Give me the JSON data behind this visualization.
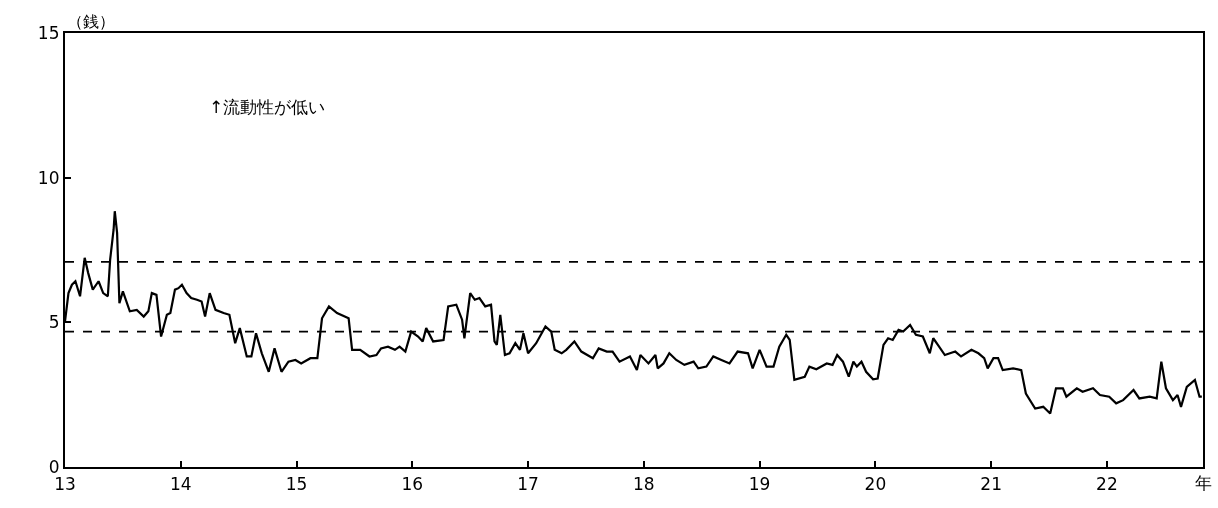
{
  "chart_data": {
    "type": "line",
    "ylabel": "（銭）",
    "xlabel": "年",
    "annotations": [
      "↑流動性が低い"
    ],
    "xlim": [
      13,
      22.83
    ],
    "xticks": [
      13,
      14,
      15,
      16,
      17,
      18,
      19,
      20,
      21,
      22
    ],
    "ylim": [
      0,
      15
    ],
    "yticks": [
      0,
      5,
      10,
      15
    ],
    "marker": "none",
    "line_style": "solid",
    "ref_lines": [
      {
        "axis": "y",
        "value": 7.09,
        "color": "#000000",
        "line_style": "dashed"
      },
      {
        "axis": "y",
        "value": 4.68,
        "color": "#000000",
        "line_style": "dashed"
      }
    ],
    "series": [
      {
        "color": "#000000",
        "x": [
          13.0,
          13.03,
          13.06,
          13.09,
          13.13,
          13.17,
          13.2,
          13.24,
          13.29,
          13.33,
          13.37,
          13.39,
          13.42,
          13.43,
          13.45,
          13.47,
          13.5,
          13.56,
          13.62,
          13.68,
          13.72,
          13.75,
          13.79,
          13.83,
          13.88,
          13.91,
          13.95,
          13.98,
          14.01,
          14.05,
          14.09,
          14.14,
          14.18,
          14.21,
          14.25,
          14.3,
          14.37,
          14.42,
          14.47,
          14.51,
          14.57,
          14.61,
          14.65,
          14.7,
          14.76,
          14.81,
          14.87,
          14.93,
          14.99,
          15.04,
          15.12,
          15.18,
          15.22,
          15.28,
          15.35,
          15.45,
          15.48,
          15.55,
          15.63,
          15.69,
          15.73,
          15.79,
          15.85,
          15.89,
          15.94,
          15.99,
          16.05,
          16.09,
          16.12,
          16.18,
          16.27,
          16.31,
          16.38,
          16.43,
          16.45,
          16.5,
          16.54,
          16.58,
          16.63,
          16.68,
          16.71,
          16.73,
          16.76,
          16.8,
          16.84,
          16.89,
          16.93,
          16.96,
          17.0,
          17.07,
          17.15,
          17.2,
          17.23,
          17.29,
          17.33,
          17.4,
          17.46,
          17.56,
          17.61,
          17.68,
          17.73,
          17.79,
          17.88,
          17.94,
          17.97,
          18.04,
          18.1,
          18.12,
          18.17,
          18.22,
          18.28,
          18.35,
          18.43,
          18.47,
          18.54,
          18.6,
          18.67,
          18.74,
          18.81,
          18.9,
          18.94,
          19.0,
          19.06,
          19.12,
          19.17,
          19.23,
          19.26,
          19.3,
          19.39,
          19.43,
          19.49,
          19.58,
          19.63,
          19.67,
          19.72,
          19.77,
          19.81,
          19.84,
          19.88,
          19.92,
          19.98,
          20.02,
          20.07,
          20.11,
          20.15,
          20.2,
          20.24,
          20.3,
          20.35,
          20.41,
          20.47,
          20.5,
          20.54,
          20.6,
          20.69,
          20.74,
          20.83,
          20.89,
          20.94,
          20.97,
          21.02,
          21.06,
          21.1,
          21.19,
          21.26,
          21.3,
          21.38,
          21.45,
          21.51,
          21.56,
          21.62,
          21.65,
          21.74,
          21.79,
          21.88,
          21.94,
          22.02,
          22.08,
          22.14,
          22.23,
          22.28,
          22.37,
          22.43,
          22.47,
          22.51,
          22.57,
          22.61,
          22.64,
          22.69,
          22.76,
          22.8,
          22.82
        ],
        "values": [
          5.03,
          6.01,
          6.3,
          6.42,
          5.9,
          7.23,
          6.71,
          6.13,
          6.42,
          6.01,
          5.9,
          7.17,
          8.21,
          8.84,
          8.09,
          5.66,
          6.07,
          5.38,
          5.43,
          5.2,
          5.38,
          6.01,
          5.95,
          4.51,
          5.26,
          5.32,
          6.13,
          6.18,
          6.3,
          6.01,
          5.84,
          5.78,
          5.72,
          5.2,
          6.01,
          5.43,
          5.32,
          5.26,
          4.28,
          4.8,
          3.82,
          3.82,
          4.62,
          3.93,
          3.29,
          4.1,
          3.29,
          3.64,
          3.7,
          3.58,
          3.76,
          3.76,
          5.14,
          5.55,
          5.32,
          5.14,
          4.05,
          4.05,
          3.82,
          3.87,
          4.1,
          4.16,
          4.05,
          4.16,
          3.99,
          4.68,
          4.51,
          4.34,
          4.8,
          4.34,
          4.39,
          5.55,
          5.61,
          5.09,
          4.45,
          6.01,
          5.78,
          5.84,
          5.55,
          5.61,
          4.34,
          4.22,
          5.26,
          3.87,
          3.93,
          4.28,
          4.05,
          4.62,
          3.93,
          4.28,
          4.86,
          4.68,
          4.05,
          3.93,
          4.05,
          4.34,
          3.99,
          3.76,
          4.1,
          3.99,
          3.99,
          3.64,
          3.82,
          3.35,
          3.87,
          3.58,
          3.87,
          3.41,
          3.58,
          3.93,
          3.7,
          3.53,
          3.64,
          3.41,
          3.47,
          3.82,
          3.7,
          3.58,
          3.99,
          3.93,
          3.41,
          4.05,
          3.47,
          3.47,
          4.16,
          4.57,
          4.39,
          3.01,
          3.12,
          3.47,
          3.38,
          3.58,
          3.53,
          3.87,
          3.64,
          3.12,
          3.64,
          3.47,
          3.64,
          3.29,
          3.03,
          3.06,
          4.22,
          4.45,
          4.39,
          4.74,
          4.68,
          4.91,
          4.57,
          4.51,
          3.93,
          4.45,
          4.22,
          3.87,
          3.99,
          3.82,
          4.05,
          3.93,
          3.76,
          3.41,
          3.76,
          3.76,
          3.35,
          3.41,
          3.35,
          2.54,
          2.02,
          2.08,
          1.85,
          2.72,
          2.72,
          2.43,
          2.72,
          2.6,
          2.72,
          2.49,
          2.43,
          2.2,
          2.31,
          2.66,
          2.37,
          2.43,
          2.37,
          3.64,
          2.72,
          2.31,
          2.49,
          2.08,
          2.77,
          3.01,
          2.43,
          2.43
        ]
      }
    ]
  }
}
